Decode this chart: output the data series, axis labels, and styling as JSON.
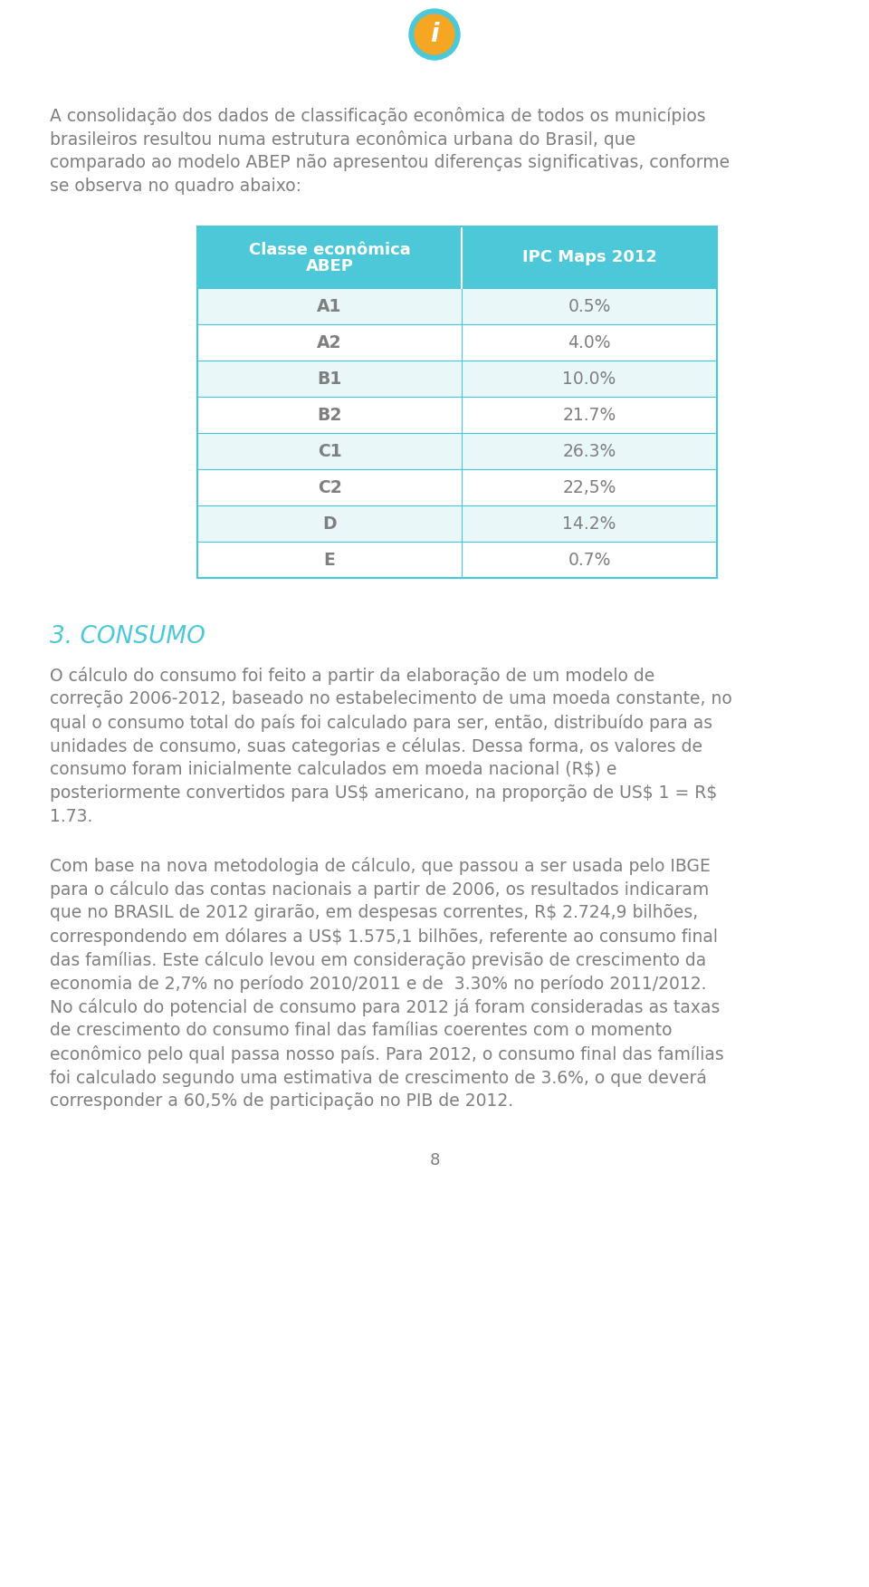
{
  "bg_color": "#ffffff",
  "text_color": "#7f7f7f",
  "icon_circle_color": "#4dc8d8",
  "icon_inner_color": "#f5a623",
  "intro_text_lines": [
    "A consolidação dos dados de classificação econômica de todos os municípios",
    "brasileiros resultou numa estrutura econômica urbana do Brasil, que",
    "comparado ao modelo ABEP não apresentou diferenças significativas, conforme",
    "se observa no quadro abaixo:"
  ],
  "table_header_bg": "#4dc8d8",
  "table_row_bg_alt": "#eaf7f9",
  "table_border_color": "#4dc8d8",
  "table_col1_header_line1": "Classe econômica",
  "table_col1_header_line2": "ABEP",
  "table_col2_header": "IPC Maps 2012",
  "table_rows": [
    [
      "A1",
      "0.5%"
    ],
    [
      "A2",
      "4.0%"
    ],
    [
      "B1",
      "10.0%"
    ],
    [
      "B2",
      "21.7%"
    ],
    [
      "C1",
      "26.3%"
    ],
    [
      "C2",
      "22,5%"
    ],
    [
      "D",
      "14.2%"
    ],
    [
      "E",
      "0.7%"
    ]
  ],
  "section_title": "3. CONSUMO",
  "section_title_color": "#4dc8d8",
  "para1_lines": [
    "O cálculo do consumo foi feito a partir da elaboração de um modelo de",
    "correção 2006-2012, baseado no estabelecimento de uma moeda constante, no",
    "qual o consumo total do país foi calculado para ser, então, distribuído para as",
    "unidades de consumo, suas categorias e células. Dessa forma, os valores de",
    "consumo foram inicialmente calculados em moeda nacional (R$) e",
    "posteriormente convertidos para US$ americano, na proporção de US$ 1 = R$",
    "1.73."
  ],
  "para2_lines": [
    "Com base na nova metodologia de cálculo, que passou a ser usada pelo IBGE",
    "para o cálculo das contas nacionais a partir de 2006, os resultados indicaram",
    "que no BRASIL de 2012 girarão, em despesas correntes, R$ 2.724,9 bilhões,",
    "correspondendo em dólares a US$ 1.575,1 bilhões, referente ao consumo final",
    "das famílias. Este cálculo levou em consideração previsão de crescimento da",
    "economia de 2,7% no período 2010/2011 e de  3.30% no período 2011/2012.",
    "No cálculo do potencial de consumo para 2012 já foram consideradas as taxas",
    "de crescimento do consumo final das famílias coerentes com o momento",
    "econômico pelo qual passa nosso país. Para 2012, o consumo final das famílias",
    "foi calculado segundo uma estimativa de crescimento de 3.6%, o que deverá",
    "corresponder a 60,5% de participação no PIB de 2012."
  ],
  "page_number": "8"
}
